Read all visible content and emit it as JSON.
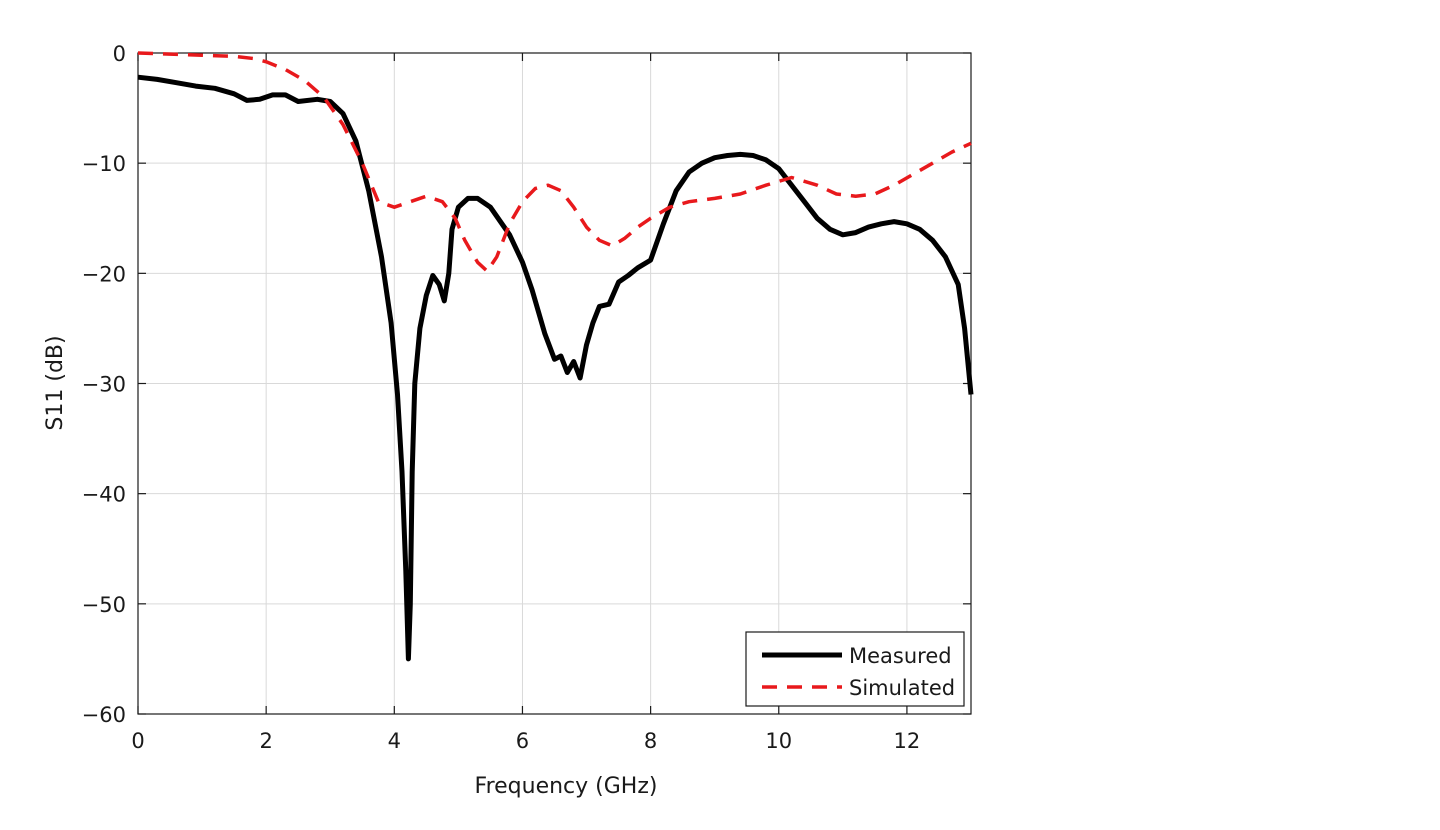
{
  "chart_data": {
    "type": "line",
    "xlabel": "Frequency (GHz)",
    "ylabel": "S11 (dB)",
    "xlim": [
      0,
      13
    ],
    "ylim": [
      -60,
      0
    ],
    "xticks": [
      0,
      2,
      4,
      6,
      8,
      10,
      12
    ],
    "yticks": [
      0,
      -10,
      -20,
      -30,
      -40,
      -50,
      -60
    ],
    "xtick_labels": [
      "0",
      "2",
      "4",
      "6",
      "8",
      "10",
      "12"
    ],
    "ytick_labels": [
      "0",
      "−10",
      "−20",
      "−30",
      "−40",
      "−50",
      "−60"
    ],
    "grid": true,
    "legend_position": "bottom-right",
    "series": [
      {
        "name": "Measured",
        "color": "#000000",
        "style": "solid",
        "x": [
          0,
          0.3,
          0.6,
          0.9,
          1.2,
          1.5,
          1.7,
          1.9,
          2.1,
          2.3,
          2.5,
          2.8,
          3.0,
          3.2,
          3.4,
          3.6,
          3.8,
          3.95,
          4.05,
          4.12,
          4.18,
          4.22,
          4.25,
          4.28,
          4.32,
          4.4,
          4.5,
          4.6,
          4.7,
          4.78,
          4.85,
          4.9,
          5.0,
          5.15,
          5.3,
          5.5,
          5.8,
          6.0,
          6.15,
          6.35,
          6.5,
          6.6,
          6.7,
          6.8,
          6.9,
          7.0,
          7.1,
          7.2,
          7.35,
          7.5,
          7.65,
          7.8,
          8.0,
          8.2,
          8.4,
          8.6,
          8.8,
          9.0,
          9.2,
          9.4,
          9.6,
          9.8,
          10.0,
          10.2,
          10.4,
          10.6,
          10.8,
          11.0,
          11.2,
          11.4,
          11.6,
          11.8,
          12.0,
          12.2,
          12.4,
          12.6,
          12.8,
          12.9,
          13.0
        ],
        "y": [
          -2.2,
          -2.4,
          -2.7,
          -3.0,
          -3.2,
          -3.7,
          -4.3,
          -4.2,
          -3.8,
          -3.8,
          -4.4,
          -4.2,
          -4.4,
          -5.5,
          -8.0,
          -12.5,
          -18.5,
          -24.5,
          -31.0,
          -38.0,
          -47.0,
          -55.0,
          -50.0,
          -38.0,
          -30.0,
          -25.0,
          -22.0,
          -20.2,
          -21.0,
          -22.5,
          -20.0,
          -16.0,
          -14.0,
          -13.2,
          -13.2,
          -14.0,
          -16.5,
          -19.0,
          -21.5,
          -25.5,
          -27.8,
          -27.5,
          -29.0,
          -28.0,
          -29.5,
          -26.5,
          -24.5,
          -23.0,
          -22.8,
          -20.8,
          -20.2,
          -19.5,
          -18.8,
          -15.5,
          -12.5,
          -10.8,
          -10.0,
          -9.5,
          -9.3,
          -9.2,
          -9.3,
          -9.7,
          -10.5,
          -12.0,
          -13.5,
          -15.0,
          -16.0,
          -16.5,
          -16.3,
          -15.8,
          -15.5,
          -15.3,
          -15.5,
          -16.0,
          -17.0,
          -18.5,
          -21.0,
          -25.0,
          -31.0
        ]
      },
      {
        "name": "Simulated",
        "color": "#e8191c",
        "style": "dashed",
        "x": [
          0,
          0.5,
          1.0,
          1.5,
          1.8,
          2.0,
          2.3,
          2.6,
          2.9,
          3.2,
          3.5,
          3.75,
          4.0,
          4.25,
          4.5,
          4.75,
          4.95,
          5.1,
          5.3,
          5.45,
          5.6,
          5.8,
          6.0,
          6.2,
          6.4,
          6.6,
          6.8,
          7.0,
          7.2,
          7.4,
          7.6,
          7.8,
          8.0,
          8.3,
          8.6,
          9.0,
          9.4,
          9.8,
          10.2,
          10.6,
          10.9,
          11.2,
          11.5,
          11.8,
          12.1,
          12.4,
          12.7,
          13.0
        ],
        "y": [
          0,
          -0.1,
          -0.2,
          -0.3,
          -0.5,
          -0.8,
          -1.5,
          -2.5,
          -4.0,
          -6.5,
          -10.0,
          -13.5,
          -14.0,
          -13.5,
          -13.0,
          -13.5,
          -15.0,
          -17.0,
          -19.0,
          -19.8,
          -18.5,
          -15.5,
          -13.5,
          -12.3,
          -12.0,
          -12.5,
          -14.0,
          -15.8,
          -17.0,
          -17.5,
          -16.8,
          -15.8,
          -15.0,
          -14.0,
          -13.5,
          -13.2,
          -12.8,
          -12.0,
          -11.3,
          -12.0,
          -12.8,
          -13.0,
          -12.8,
          -12.0,
          -11.0,
          -10.0,
          -9.0,
          -8.2
        ]
      }
    ]
  }
}
